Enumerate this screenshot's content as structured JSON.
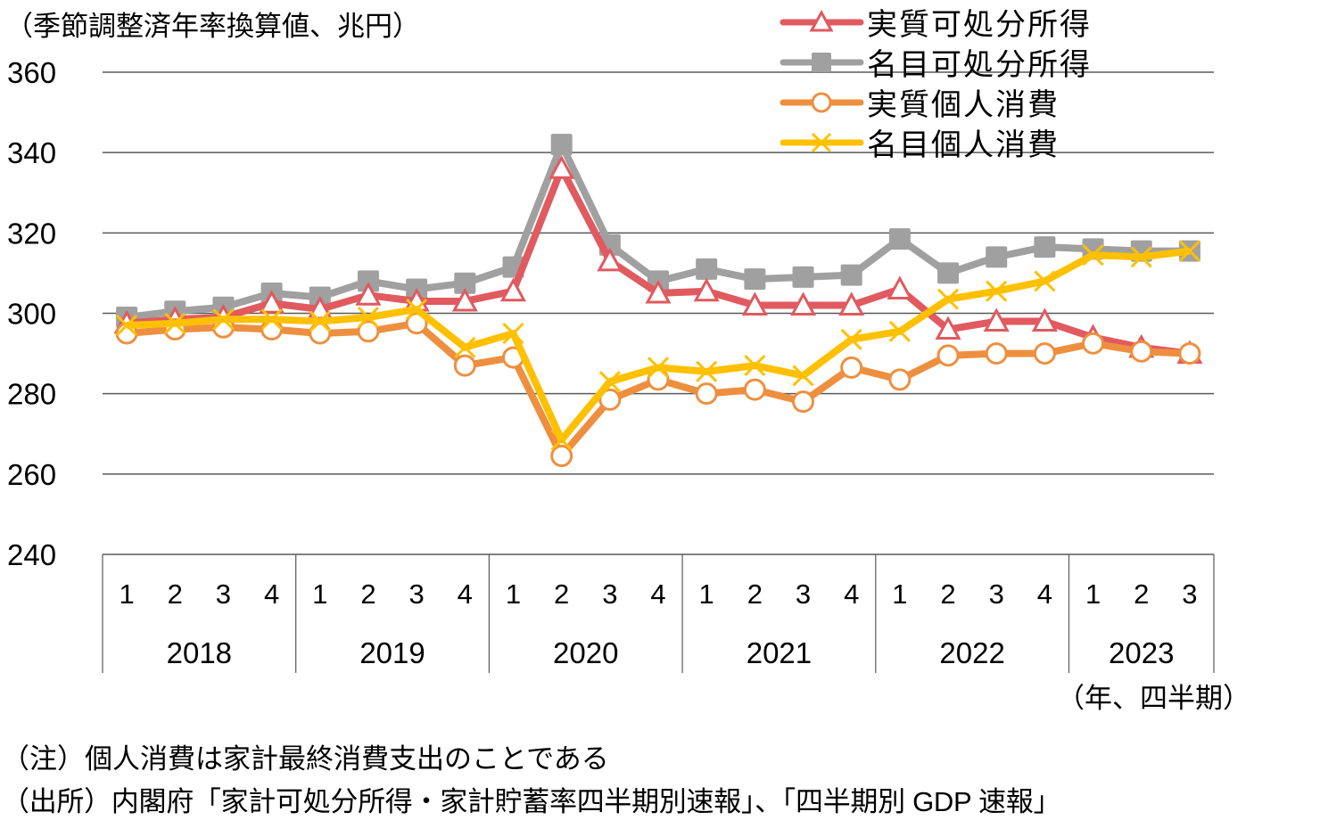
{
  "chart_data": {
    "type": "line",
    "title": "",
    "ylabel": "（季節調整済年率換算値、兆円）",
    "xlabel": "（年、四半期）",
    "ylim": [
      240,
      360
    ],
    "yticks": [
      360,
      340,
      320,
      300,
      280,
      260,
      240
    ],
    "grid": true,
    "legend_position": "top-right",
    "x_quarters": [
      "1",
      "2",
      "3",
      "4",
      "1",
      "2",
      "3",
      "4",
      "1",
      "2",
      "3",
      "4",
      "1",
      "2",
      "3",
      "4",
      "1",
      "2",
      "3",
      "4",
      "1",
      "2",
      "3"
    ],
    "years": [
      {
        "label": "2018",
        "quarters": 4
      },
      {
        "label": "2019",
        "quarters": 4
      },
      {
        "label": "2020",
        "quarters": 4
      },
      {
        "label": "2021",
        "quarters": 4
      },
      {
        "label": "2022",
        "quarters": 4
      },
      {
        "label": "2023",
        "quarters": 3
      }
    ],
    "series": [
      {
        "name": "実質可処分所得",
        "marker": "triangle-open",
        "color": "#e05a5f",
        "values": [
          297.5,
          298.5,
          299,
          302.5,
          301,
          304.5,
          303,
          303,
          305.5,
          336,
          313,
          305,
          305.5,
          302,
          302,
          302,
          306,
          296,
          298,
          298,
          294,
          291.5,
          290
        ]
      },
      {
        "name": "名目可処分所得",
        "marker": "square-filled",
        "color": "#a0a0a0",
        "values": [
          299,
          300.5,
          301.5,
          305,
          304,
          308,
          306,
          307.5,
          311.5,
          342,
          317,
          308,
          311,
          308.5,
          309,
          309.5,
          318.5,
          310,
          314,
          316.5,
          316,
          315.5,
          315.5
        ]
      },
      {
        "name": "実質個人消費",
        "marker": "circle-open",
        "color": "#ee8f3f",
        "values": [
          295,
          296,
          296.5,
          296,
          295,
          295.5,
          297.5,
          287,
          289,
          264.5,
          278.5,
          283.5,
          280,
          281,
          278,
          286.5,
          283.5,
          289.5,
          290,
          290,
          292.5,
          290.5,
          290
        ]
      },
      {
        "name": "名目個人消費",
        "marker": "x",
        "color": "#ffc000",
        "values": [
          297,
          297.5,
          298.5,
          298.5,
          298,
          299,
          301,
          291.5,
          295,
          268.5,
          283,
          286.5,
          285.5,
          287,
          284.5,
          293.5,
          295.5,
          303.5,
          305.5,
          308,
          314.5,
          314,
          315.5
        ]
      }
    ]
  },
  "notes": {
    "note": "（注）個人消費は家計最終消費支出のことである",
    "source": "（出所）内閣府「家計可処分所得・家計貯蓄率四半期別速報」、「四半期別 GDP 速報」"
  }
}
